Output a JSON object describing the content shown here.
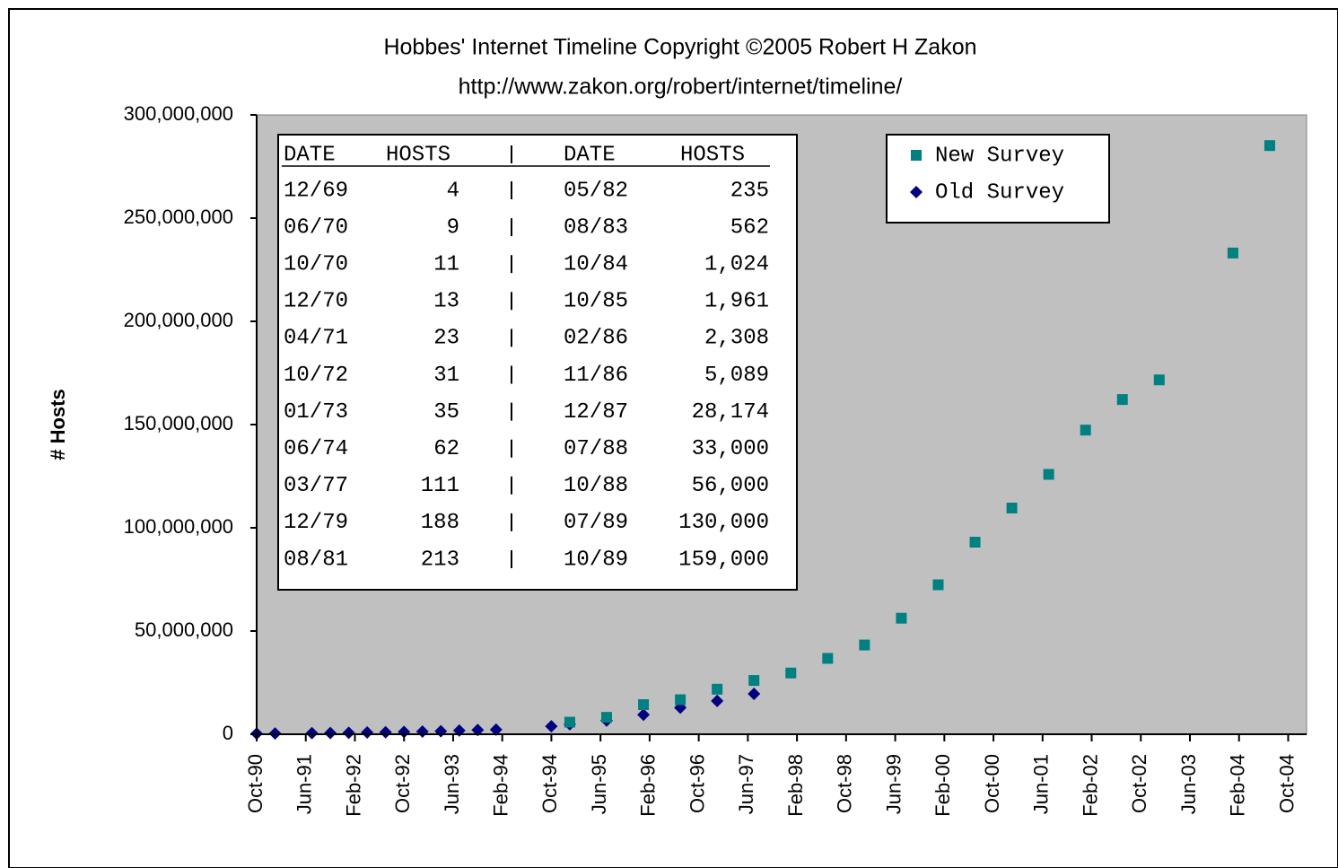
{
  "chart_data": {
    "type": "scatter",
    "title": "Hobbes' Internet Timeline Copyright ©2005 Robert H Zakon",
    "subtitle": "http://www.zakon.org/robert/internet/timeline/",
    "y_label": "# Hosts",
    "legend": "upper right",
    "xlim": [
      "1990-10",
      "2005-01"
    ],
    "xticks": [
      {
        "value": "1990-10",
        "label": "Oct-90"
      },
      {
        "value": "1991-06",
        "label": "Jun-91"
      },
      {
        "value": "1992-02",
        "label": "Feb-92"
      },
      {
        "value": "1992-10",
        "label": "Oct-92"
      },
      {
        "value": "1993-06",
        "label": "Jun-93"
      },
      {
        "value": "1994-02",
        "label": "Feb-94"
      },
      {
        "value": "1994-10",
        "label": "Oct-94"
      },
      {
        "value": "1995-06",
        "label": "Jun-95"
      },
      {
        "value": "1996-02",
        "label": "Feb-96"
      },
      {
        "value": "1996-10",
        "label": "Oct-96"
      },
      {
        "value": "1997-06",
        "label": "Jun-97"
      },
      {
        "value": "1998-02",
        "label": "Feb-98"
      },
      {
        "value": "1998-10",
        "label": "Oct-98"
      },
      {
        "value": "1999-06",
        "label": "Jun-99"
      },
      {
        "value": "2000-02",
        "label": "Feb-00"
      },
      {
        "value": "2000-10",
        "label": "Oct-00"
      },
      {
        "value": "2001-06",
        "label": "Jun-01"
      },
      {
        "value": "2002-02",
        "label": "Feb-02"
      },
      {
        "value": "2002-10",
        "label": "Oct-02"
      },
      {
        "value": "2003-06",
        "label": "Jun-03"
      },
      {
        "value": "2004-02",
        "label": "Feb-04"
      },
      {
        "value": "2004-10",
        "label": "Oct-04"
      }
    ],
    "ylim": [
      0,
      300000000
    ],
    "yticks": [
      0,
      {
        "value": 50000000,
        "label": "50,000,000"
      },
      {
        "value": 100000000,
        "label": "100,000,000"
      },
      {
        "value": 150000000,
        "label": "150,000,000"
      },
      {
        "value": 200000000,
        "label": "200,000,000"
      },
      {
        "value": 250000000,
        "label": "250,000,000"
      },
      {
        "value": 300000000,
        "label": "300,000,000"
      }
    ],
    "grid": false,
    "series": [
      {
        "name": "New Survey",
        "color": "#008080",
        "marker": "square",
        "x": [
          "1995-01",
          "1995-07",
          "1996-01",
          "1996-07",
          "1997-01",
          "1997-07",
          "1998-01",
          "1998-07",
          "1999-01",
          "1999-07",
          "2000-01",
          "2000-07",
          "2001-01",
          "2001-07",
          "2002-01",
          "2002-07",
          "2003-01",
          "2004-01",
          "2004-07"
        ],
        "values": [
          5846000,
          8200000,
          14352000,
          16729000,
          21819000,
          26053000,
          29670000,
          36739000,
          43230000,
          56218000,
          72398000,
          93047000,
          109574000,
          125888000,
          147345000,
          162128000,
          171638000,
          233101000,
          285139000
        ]
      },
      {
        "name": "Old Survey",
        "color": "#000080",
        "marker": "diamond",
        "x": [
          "1990-10",
          "1991-01",
          "1991-07",
          "1991-10",
          "1992-01",
          "1992-04",
          "1992-07",
          "1992-10",
          "1993-01",
          "1993-04",
          "1993-07",
          "1993-10",
          "1994-01",
          "1994-10",
          "1995-01",
          "1995-07",
          "1996-01",
          "1996-07",
          "1997-01",
          "1997-07"
        ],
        "values": [
          313000,
          376000,
          535000,
          617000,
          727000,
          890000,
          992000,
          1136000,
          1313000,
          1486000,
          1776000,
          2056000,
          2217000,
          3864000,
          4852000,
          6642000,
          9472000,
          12881000,
          16146000,
          19540000
        ]
      }
    ]
  },
  "table": {
    "headers": [
      "DATE",
      "HOSTS",
      "DATE",
      "HOSTS"
    ],
    "rows": [
      [
        "12/69",
        "4",
        "05/82",
        "235"
      ],
      [
        "06/70",
        "9",
        "08/83",
        "562"
      ],
      [
        "10/70",
        "11",
        "10/84",
        "1,024"
      ],
      [
        "12/70",
        "13",
        "10/85",
        "1,961"
      ],
      [
        "04/71",
        "23",
        "02/86",
        "2,308"
      ],
      [
        "10/72",
        "31",
        "11/86",
        "5,089"
      ],
      [
        "01/73",
        "35",
        "12/87",
        "28,174"
      ],
      [
        "06/74",
        "62",
        "07/88",
        "33,000"
      ],
      [
        "03/77",
        "111",
        "10/88",
        "56,000"
      ],
      [
        "12/79",
        "188",
        "07/89",
        "130,000"
      ],
      [
        "08/81",
        "213",
        "10/89",
        "159,000"
      ]
    ]
  }
}
